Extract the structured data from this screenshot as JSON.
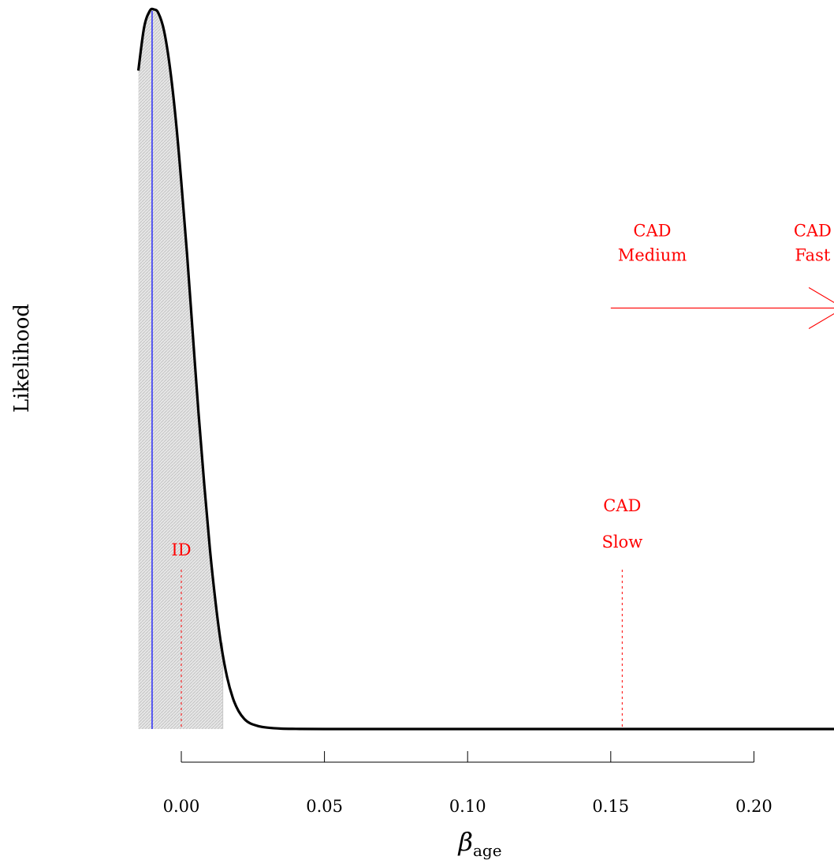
{
  "chart_data": {
    "type": "area",
    "title": "",
    "ylabel": "Likelihood",
    "xlabel": {
      "symbol": "β",
      "subscript": "age"
    },
    "xlim": [
      -0.015,
      0.228
    ],
    "ylim": [
      0,
      1.0
    ],
    "x_ticks": [
      0.0,
      0.05,
      0.1,
      0.15,
      0.2
    ],
    "x_tick_labels": [
      "0.00",
      "0.05",
      "0.10",
      "0.15",
      "0.20"
    ],
    "curve": {
      "description": "likelihood curve",
      "x": [
        -0.015,
        -0.013,
        -0.011,
        -0.0095,
        -0.008,
        -0.006,
        -0.004,
        -0.002,
        0.0,
        0.002,
        0.004,
        0.006,
        0.008,
        0.01,
        0.012,
        0.014,
        0.016,
        0.018,
        0.02,
        0.022,
        0.024,
        0.027,
        0.03,
        0.035,
        0.04,
        0.05,
        0.1,
        0.15,
        0.2,
        0.228
      ],
      "y": [
        0.915,
        0.975,
        0.998,
        1.0,
        0.995,
        0.97,
        0.92,
        0.85,
        0.76,
        0.66,
        0.55,
        0.44,
        0.34,
        0.25,
        0.175,
        0.115,
        0.072,
        0.043,
        0.025,
        0.014,
        0.008,
        0.004,
        0.002,
        0.0006,
        0.0002,
        4e-05,
        0.0,
        0.0,
        0.0,
        0.0
      ]
    },
    "shaded_interval": [
      -0.015,
      0.0145
    ],
    "mle_line": {
      "x": -0.0102,
      "color": "#0000ff"
    },
    "reference_lines": [
      {
        "label": "ID",
        "x": 0.0,
        "color": "#ff0000"
      },
      {
        "label_lines": [
          "CAD",
          "Slow"
        ],
        "x": 0.154,
        "color": "#ff0000"
      }
    ],
    "arrow": {
      "x_start": 0.15,
      "x_end": 0.228,
      "y": 0.585,
      "color": "#ff0000",
      "labels": [
        {
          "lines": [
            "CAD",
            "Medium"
          ],
          "x": 0.1645,
          "y": 0.685
        },
        {
          "lines": [
            "CAD",
            "Fast"
          ],
          "x": 0.2205,
          "y": 0.685
        }
      ]
    },
    "colors": {
      "curve": "#000000",
      "shade": "#d3d3d3",
      "mle": "#0000ff",
      "annotation": "#ff0000"
    }
  }
}
